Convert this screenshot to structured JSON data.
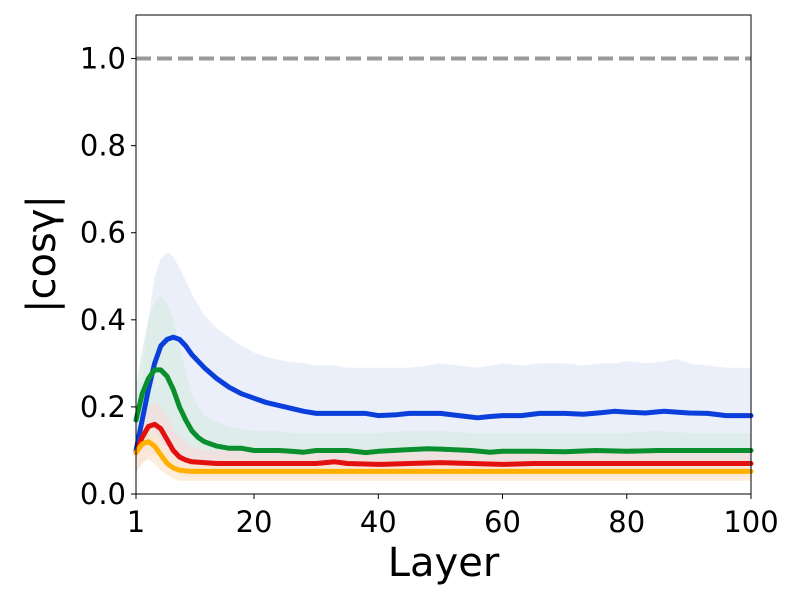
{
  "chart_data": {
    "type": "line",
    "xlabel": "Layer",
    "ylabel": "|cosγ|",
    "xlim": [
      1,
      100
    ],
    "ylim": [
      0,
      1.1
    ],
    "xticks": [
      1,
      20,
      40,
      60,
      80,
      100
    ],
    "xtick_labels": [
      "1",
      "20",
      "40",
      "60",
      "80",
      "100"
    ],
    "yticks": [
      0,
      0.2,
      0.4,
      0.6,
      0.8,
      1.0
    ],
    "ytick_labels": [
      "0.0",
      "0.2",
      "0.4",
      "0.6",
      "0.8",
      "1.0"
    ],
    "grid": false,
    "reference_line": {
      "y": 1.0,
      "color": "#999999",
      "style": "dashed"
    },
    "series": [
      {
        "color": "#0a3fdb",
        "band_color": "#e4eaf8",
        "x": [
          1,
          2,
          3,
          4,
          5,
          6,
          7,
          8,
          9,
          10,
          12,
          14,
          16,
          18,
          20,
          22,
          25,
          28,
          30,
          33,
          35,
          38,
          40,
          43,
          45,
          48,
          50,
          53,
          56,
          58,
          60,
          63,
          66,
          68,
          70,
          73,
          76,
          78,
          80,
          83,
          86,
          88,
          90,
          93,
          96,
          98,
          100
        ],
        "values": [
          0.1,
          0.17,
          0.24,
          0.3,
          0.34,
          0.355,
          0.36,
          0.355,
          0.34,
          0.32,
          0.29,
          0.265,
          0.245,
          0.23,
          0.22,
          0.21,
          0.2,
          0.19,
          0.185,
          0.185,
          0.185,
          0.185,
          0.18,
          0.182,
          0.185,
          0.185,
          0.185,
          0.18,
          0.175,
          0.178,
          0.18,
          0.18,
          0.185,
          0.185,
          0.185,
          0.183,
          0.187,
          0.19,
          0.188,
          0.186,
          0.19,
          0.188,
          0.186,
          0.185,
          0.18,
          0.18,
          0.18
        ],
        "upper": [
          0.16,
          0.28,
          0.4,
          0.5,
          0.54,
          0.555,
          0.545,
          0.52,
          0.49,
          0.46,
          0.41,
          0.38,
          0.36,
          0.34,
          0.325,
          0.315,
          0.305,
          0.3,
          0.295,
          0.295,
          0.29,
          0.29,
          0.29,
          0.29,
          0.29,
          0.295,
          0.3,
          0.295,
          0.29,
          0.295,
          0.3,
          0.295,
          0.3,
          0.3,
          0.3,
          0.295,
          0.3,
          0.3,
          0.305,
          0.3,
          0.305,
          0.31,
          0.3,
          0.295,
          0.29,
          0.29,
          0.29
        ],
        "lower": [
          0.05,
          0.07,
          0.09,
          0.1,
          0.11,
          0.11,
          0.11,
          0.105,
          0.1,
          0.095,
          0.09,
          0.085,
          0.08,
          0.08,
          0.075,
          0.075,
          0.075,
          0.075,
          0.075,
          0.075,
          0.075,
          0.075,
          0.075,
          0.075,
          0.075,
          0.075,
          0.075,
          0.075,
          0.075,
          0.075,
          0.075,
          0.075,
          0.075,
          0.075,
          0.075,
          0.075,
          0.075,
          0.075,
          0.075,
          0.075,
          0.075,
          0.075,
          0.075,
          0.075,
          0.075,
          0.075,
          0.075
        ]
      },
      {
        "color": "#0a8f2e",
        "band_color": "#d9ebe4",
        "x": [
          1,
          2,
          3,
          4,
          5,
          6,
          7,
          8,
          9,
          10,
          11,
          12,
          14,
          16,
          18,
          20,
          22,
          24,
          26,
          28,
          30,
          35,
          38,
          40,
          45,
          48,
          50,
          55,
          58,
          60,
          65,
          70,
          75,
          80,
          85,
          90,
          95,
          100
        ],
        "values": [
          0.17,
          0.23,
          0.265,
          0.285,
          0.285,
          0.27,
          0.24,
          0.2,
          0.17,
          0.145,
          0.13,
          0.12,
          0.11,
          0.105,
          0.105,
          0.1,
          0.1,
          0.1,
          0.098,
          0.096,
          0.1,
          0.1,
          0.095,
          0.098,
          0.102,
          0.104,
          0.103,
          0.1,
          0.096,
          0.098,
          0.098,
          0.097,
          0.1,
          0.098,
          0.1,
          0.1,
          0.1,
          0.1
        ],
        "upper": [
          0.25,
          0.33,
          0.4,
          0.44,
          0.455,
          0.44,
          0.4,
          0.34,
          0.28,
          0.23,
          0.2,
          0.18,
          0.165,
          0.155,
          0.15,
          0.145,
          0.145,
          0.145,
          0.14,
          0.14,
          0.14,
          0.14,
          0.14,
          0.14,
          0.145,
          0.145,
          0.145,
          0.14,
          0.14,
          0.14,
          0.14,
          0.14,
          0.14,
          0.14,
          0.145,
          0.14,
          0.14,
          0.14
        ],
        "lower": [
          0.08,
          0.1,
          0.11,
          0.12,
          0.12,
          0.11,
          0.1,
          0.08,
          0.07,
          0.06,
          0.055,
          0.05,
          0.05,
          0.05,
          0.05,
          0.05,
          0.05,
          0.05,
          0.05,
          0.05,
          0.05,
          0.05,
          0.05,
          0.05,
          0.05,
          0.05,
          0.05,
          0.05,
          0.05,
          0.05,
          0.05,
          0.05,
          0.05,
          0.05,
          0.05,
          0.05,
          0.05,
          0.05
        ]
      },
      {
        "color": "#e31010",
        "band_color": "#f6dede",
        "x": [
          1,
          2,
          3,
          4,
          5,
          6,
          7,
          8,
          9,
          10,
          12,
          14,
          16,
          18,
          20,
          25,
          30,
          33,
          35,
          40,
          45,
          50,
          55,
          60,
          65,
          70,
          75,
          80,
          85,
          90,
          95,
          100
        ],
        "values": [
          0.095,
          0.13,
          0.155,
          0.16,
          0.15,
          0.125,
          0.1,
          0.085,
          0.078,
          0.074,
          0.072,
          0.07,
          0.07,
          0.07,
          0.07,
          0.07,
          0.07,
          0.074,
          0.07,
          0.068,
          0.07,
          0.072,
          0.07,
          0.068,
          0.07,
          0.07,
          0.07,
          0.07,
          0.07,
          0.07,
          0.07,
          0.07
        ],
        "upper": [
          0.14,
          0.18,
          0.2,
          0.21,
          0.2,
          0.18,
          0.15,
          0.13,
          0.12,
          0.11,
          0.1,
          0.1,
          0.1,
          0.1,
          0.1,
          0.1,
          0.1,
          0.1,
          0.1,
          0.1,
          0.1,
          0.1,
          0.1,
          0.1,
          0.1,
          0.1,
          0.1,
          0.1,
          0.1,
          0.1,
          0.1,
          0.1
        ],
        "lower": [
          0.05,
          0.07,
          0.09,
          0.09,
          0.085,
          0.07,
          0.055,
          0.045,
          0.04,
          0.04,
          0.04,
          0.04,
          0.04,
          0.04,
          0.04,
          0.04,
          0.04,
          0.04,
          0.04,
          0.04,
          0.04,
          0.04,
          0.04,
          0.04,
          0.04,
          0.04,
          0.04,
          0.04,
          0.04,
          0.04,
          0.04,
          0.04
        ]
      },
      {
        "color": "#ffb000",
        "band_color": "#fbe7d0",
        "x": [
          1,
          2,
          3,
          4,
          5,
          6,
          7,
          8,
          9,
          10,
          12,
          14,
          16,
          20,
          25,
          30,
          35,
          40,
          50,
          60,
          70,
          80,
          90,
          100
        ],
        "values": [
          0.095,
          0.115,
          0.12,
          0.11,
          0.09,
          0.07,
          0.06,
          0.055,
          0.053,
          0.052,
          0.052,
          0.052,
          0.052,
          0.052,
          0.052,
          0.052,
          0.052,
          0.052,
          0.052,
          0.052,
          0.052,
          0.052,
          0.052,
          0.052
        ],
        "upper": [
          0.13,
          0.15,
          0.155,
          0.145,
          0.12,
          0.1,
          0.085,
          0.08,
          0.075,
          0.075,
          0.075,
          0.075,
          0.075,
          0.075,
          0.075,
          0.075,
          0.075,
          0.075,
          0.075,
          0.075,
          0.075,
          0.075,
          0.075,
          0.075
        ],
        "lower": [
          0.055,
          0.07,
          0.08,
          0.07,
          0.055,
          0.045,
          0.035,
          0.03,
          0.03,
          0.03,
          0.03,
          0.03,
          0.03,
          0.03,
          0.03,
          0.03,
          0.03,
          0.03,
          0.03,
          0.03,
          0.03,
          0.03,
          0.03,
          0.03
        ]
      }
    ]
  }
}
